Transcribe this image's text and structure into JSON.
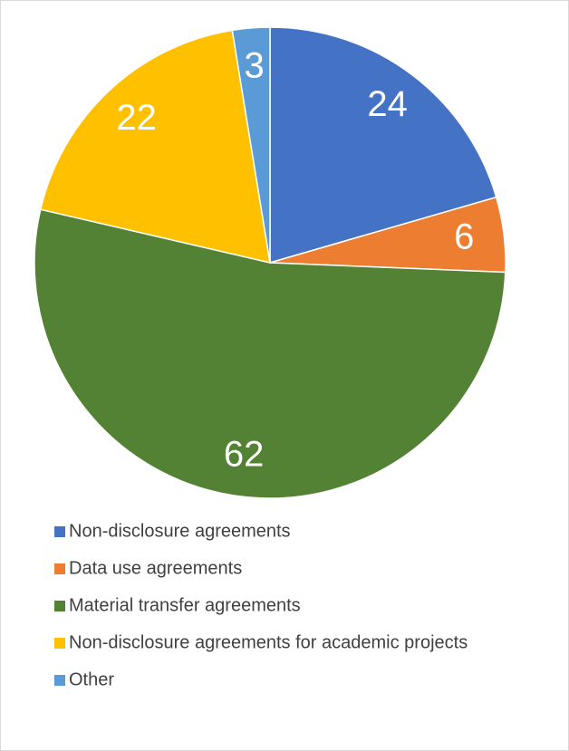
{
  "chart_data": {
    "type": "pie",
    "categories": [
      "Non-disclosure agreements",
      "Data use agreements",
      "Material transfer agreements",
      "Non-disclosure agreements for academic projects",
      "Other"
    ],
    "values": [
      24,
      6,
      62,
      22,
      3
    ],
    "colors": [
      "#4472c4",
      "#ed7d31",
      "#548235",
      "#ffc000",
      "#5b9bd5"
    ],
    "legend": "bottom"
  }
}
